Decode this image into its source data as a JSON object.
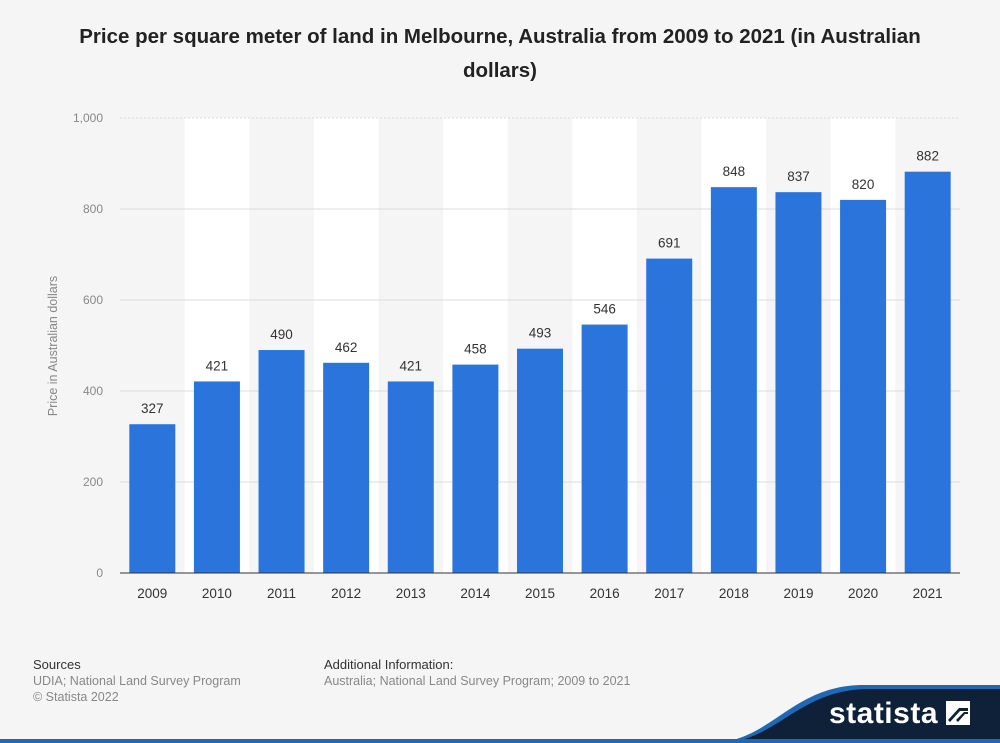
{
  "chart_data": {
    "type": "bar",
    "title": "Price per square meter of land in Melbourne, Australia from 2009 to 2021 (in Australian dollars)",
    "xlabel": "",
    "ylabel": "Price in Australian dollars",
    "categories": [
      "2009",
      "2010",
      "2011",
      "2012",
      "2013",
      "2014",
      "2015",
      "2016",
      "2017",
      "2018",
      "2019",
      "2020",
      "2021"
    ],
    "values": [
      327,
      421,
      490,
      462,
      421,
      458,
      493,
      546,
      691,
      848,
      837,
      820,
      882
    ],
    "data_labels": [
      "327",
      "421",
      "490",
      "462",
      "421",
      "458",
      "493",
      "546",
      "691",
      "848",
      "837",
      "820",
      "882"
    ],
    "ylim": [
      0,
      1000
    ],
    "yticks": [
      0,
      200,
      400,
      600,
      800,
      1000
    ],
    "ytick_labels": [
      "0",
      "200",
      "400",
      "600",
      "800",
      "1,000"
    ],
    "grid": true,
    "bar_color": "#2a74dc",
    "legend": "none"
  },
  "footer": {
    "sources_heading": "Sources",
    "sources_line1": "UDIA; National Land Survey Program",
    "sources_line2": "© Statista 2022",
    "additional_heading": "Additional Information:",
    "additional_text": "Australia; National Land Survey Program; 2009 to 2021"
  },
  "brand": {
    "name": "statista",
    "background_color": "#0e2138",
    "accent_color": "#1f68b5",
    "icon": "statista-logo-icon"
  }
}
